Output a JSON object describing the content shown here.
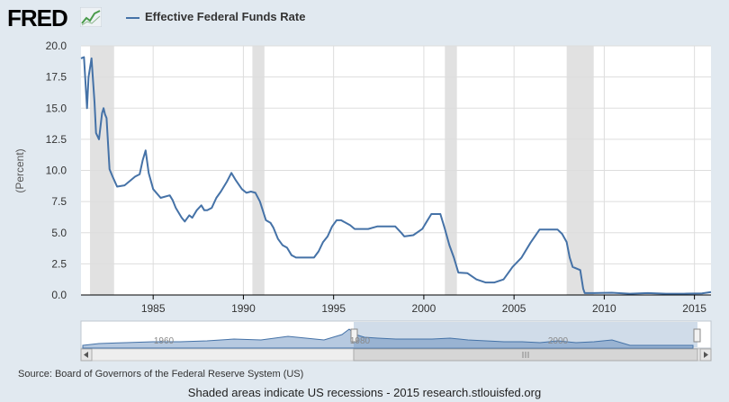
{
  "header": {
    "logo_text": "FRED",
    "logo_icon": "line-chart-icon",
    "legend_label": "Effective Federal Funds Rate",
    "series_color": "#4572a7"
  },
  "chart_data": {
    "type": "line",
    "title": "",
    "ylabel": "(Percent)",
    "xlabel": "",
    "ylim": [
      0,
      20
    ],
    "xlim": [
      "1981-01",
      "2015-12"
    ],
    "yticks": [
      "0.0",
      "2.5",
      "5.0",
      "7.5",
      "10.0",
      "12.5",
      "15.0",
      "17.5",
      "20.0"
    ],
    "xticks": [
      "1985",
      "1990",
      "1995",
      "2000",
      "2005",
      "2010",
      "2015"
    ],
    "grid": true,
    "legend": "top-left",
    "recessions": [
      [
        "1981-07",
        "1982-11"
      ],
      [
        "1990-07",
        "1991-03"
      ],
      [
        "2001-03",
        "2001-11"
      ],
      [
        "2007-12",
        "2009-06"
      ]
    ],
    "series": [
      {
        "name": "Effective Federal Funds Rate",
        "x": [
          "1981-01",
          "1981-03",
          "1981-05",
          "1981-06",
          "1981-08",
          "1981-10",
          "1981-11",
          "1982-01",
          "1982-03",
          "1982-04",
          "1982-05",
          "1982-06",
          "1982-08",
          "1982-10",
          "1983-01",
          "1983-06",
          "1984-01",
          "1984-04",
          "1984-06",
          "1984-08",
          "1984-10",
          "1985-01",
          "1985-06",
          "1985-12",
          "1986-02",
          "1986-04",
          "1986-08",
          "1986-10",
          "1987-01",
          "1987-03",
          "1987-06",
          "1987-09",
          "1987-11",
          "1988-01",
          "1988-04",
          "1988-07",
          "1988-10",
          "1989-02",
          "1989-05",
          "1989-08",
          "1989-12",
          "1990-03",
          "1990-06",
          "1990-09",
          "1990-12",
          "1991-04",
          "1991-07",
          "1991-09",
          "1991-12",
          "1992-03",
          "1992-06",
          "1992-09",
          "1992-12",
          "1993-06",
          "1993-12",
          "1994-03",
          "1994-06",
          "1994-09",
          "1994-12",
          "1995-03",
          "1995-06",
          "1995-12",
          "1996-03",
          "1996-06",
          "1996-12",
          "1997-06",
          "1997-12",
          "1998-06",
          "1998-10",
          "1998-12",
          "1999-06",
          "1999-12",
          "2000-03",
          "2000-06",
          "2000-12",
          "2001-03",
          "2001-06",
          "2001-09",
          "2001-12",
          "2002-06",
          "2002-12",
          "2003-06",
          "2003-12",
          "2004-06",
          "2004-09",
          "2004-12",
          "2005-06",
          "2005-12",
          "2006-06",
          "2006-09",
          "2007-06",
          "2007-09",
          "2007-12",
          "2008-02",
          "2008-04",
          "2008-09",
          "2008-11",
          "2008-12",
          "2009-06",
          "2010-06",
          "2011-06",
          "2012-06",
          "2013-06",
          "2014-06",
          "2015-06",
          "2015-12"
        ],
        "values": [
          19.0,
          19.1,
          15.0,
          17.5,
          19.0,
          15.5,
          13.0,
          12.5,
          14.6,
          15.0,
          14.5,
          14.2,
          10.1,
          9.5,
          8.7,
          8.8,
          9.5,
          9.7,
          10.8,
          11.6,
          9.8,
          8.5,
          7.8,
          8.0,
          7.6,
          7.0,
          6.2,
          5.9,
          6.4,
          6.2,
          6.8,
          7.2,
          6.8,
          6.8,
          7.0,
          7.8,
          8.3,
          9.1,
          9.8,
          9.2,
          8.5,
          8.2,
          8.3,
          8.2,
          7.5,
          6.0,
          5.8,
          5.4,
          4.5,
          4.0,
          3.8,
          3.2,
          3.0,
          3.0,
          3.0,
          3.5,
          4.25,
          4.7,
          5.5,
          6.0,
          6.0,
          5.6,
          5.3,
          5.3,
          5.3,
          5.5,
          5.5,
          5.5,
          5.0,
          4.7,
          4.8,
          5.3,
          5.9,
          6.5,
          6.5,
          5.3,
          4.0,
          3.0,
          1.8,
          1.75,
          1.25,
          1.0,
          1.0,
          1.25,
          1.75,
          2.25,
          3.0,
          4.2,
          5.25,
          5.25,
          5.25,
          4.9,
          4.25,
          3.0,
          2.25,
          2.0,
          0.5,
          0.15,
          0.15,
          0.18,
          0.1,
          0.15,
          0.1,
          0.1,
          0.13,
          0.24
        ]
      }
    ]
  },
  "navigator": {
    "labels": [
      "1960",
      "1980",
      "2000"
    ]
  },
  "footer": {
    "source": "Source: Board of Governors of the Federal Reserve System (US)",
    "note": "Shaded areas indicate US recessions - 2015 research.stlouisfed.org"
  }
}
